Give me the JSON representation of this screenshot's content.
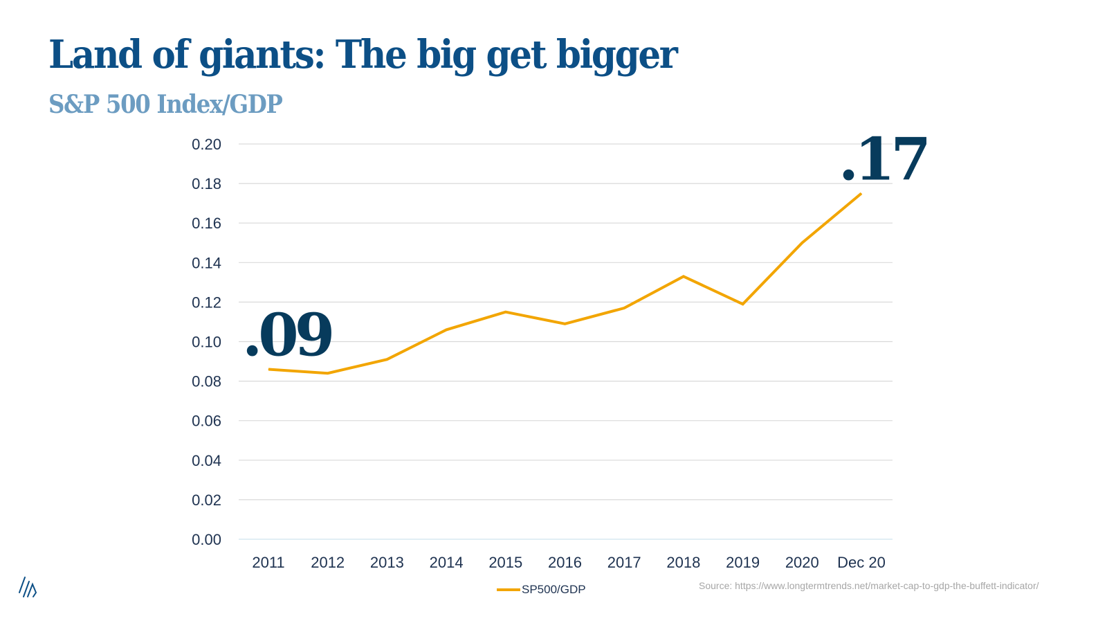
{
  "slide": {
    "title": "Land of giants: The big get bigger",
    "subtitle": "S&P 500 Index/GDP",
    "source": "Source: https://www.longtermtrends.net/market-cap-to-gdp-the-buffett-indicator/",
    "logo_icon": "brand-slash-logo-icon"
  },
  "colors": {
    "title": "#0c4f86",
    "subtitle": "#6c9cc1",
    "series": "#f2a500",
    "callout": "#073b5c",
    "grid": "#d9d9d9"
  },
  "chart_data": {
    "type": "line",
    "title": "S&P 500 Index/GDP",
    "xlabel": "",
    "ylabel": "",
    "categories": [
      "2011",
      "2012",
      "2013",
      "2014",
      "2015",
      "2016",
      "2017",
      "2018",
      "2019",
      "2020",
      "Dec 20"
    ],
    "series": [
      {
        "name": "SP500/GDP",
        "values": [
          0.086,
          0.084,
          0.091,
          0.106,
          0.115,
          0.109,
          0.117,
          0.133,
          0.119,
          0.15,
          0.175
        ]
      }
    ],
    "ylim": [
      0,
      0.2
    ],
    "yticks": [
      "0.00",
      "0.02",
      "0.04",
      "0.06",
      "0.08",
      "0.10",
      "0.12",
      "0.14",
      "0.16",
      "0.18",
      "0.20"
    ],
    "grid": true,
    "legend": {
      "position": "bottom-center",
      "entries": [
        "SP500/GDP"
      ]
    },
    "annotations": [
      {
        "text": ".09",
        "category": "2011",
        "placement": "above-start"
      },
      {
        "text": ".17",
        "category": "Dec 20",
        "placement": "above-end"
      }
    ]
  }
}
